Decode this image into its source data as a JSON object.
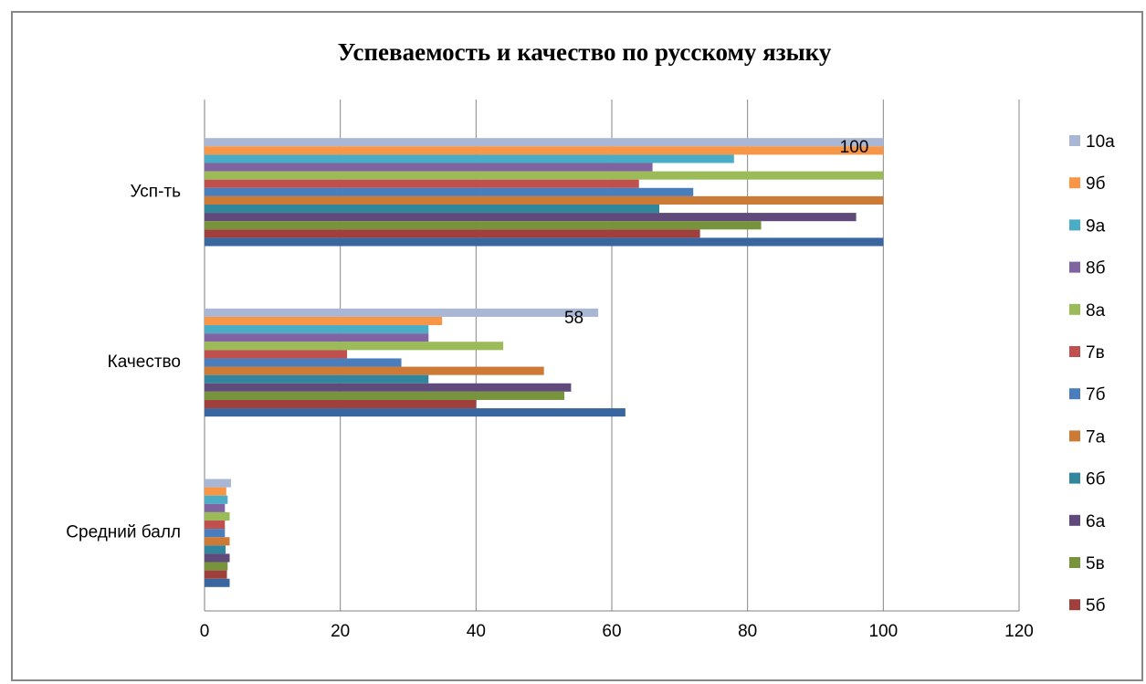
{
  "chart_data": {
    "type": "bar",
    "orientation": "horizontal",
    "title": "Успеваемость и качество по русскому языку",
    "categories": [
      "Усп-ть",
      "Качество",
      "Средний балл"
    ],
    "xlim": [
      0,
      120
    ],
    "x_ticks": [
      "0",
      "20",
      "40",
      "60",
      "80",
      "100",
      "120"
    ],
    "grid": true,
    "legend_position": "right",
    "series": [
      {
        "name": "5б",
        "color": "#a0403c",
        "values": [
          73,
          40,
          3.3
        ]
      },
      {
        "name": "5в",
        "color": "#77933c",
        "values": [
          82,
          53,
          3.4
        ]
      },
      {
        "name": "6а",
        "color": "#5f4a7b",
        "values": [
          96,
          54,
          3.7
        ]
      },
      {
        "name": "6б",
        "color": "#31859c",
        "values": [
          67,
          33,
          3.1
        ]
      },
      {
        "name": "7а",
        "color": "#cc7a36",
        "values": [
          100,
          50,
          3.7
        ]
      },
      {
        "name": "7б",
        "color": "#4a7dbb",
        "values": [
          72,
          29,
          3.0
        ]
      },
      {
        "name": "7в",
        "color": "#c0504d",
        "values": [
          64,
          21,
          3.0
        ]
      },
      {
        "name": "8а",
        "color": "#9bbb59",
        "values": [
          100,
          44,
          3.7
        ]
      },
      {
        "name": "8б",
        "color": "#8064a2",
        "values": [
          66,
          33,
          3.0
        ]
      },
      {
        "name": "9а",
        "color": "#4bacc6",
        "values": [
          78,
          33,
          3.4
        ]
      },
      {
        "name": "9б",
        "color": "#f79646",
        "values": [
          100,
          35,
          3.2
        ]
      },
      {
        "name": "10а",
        "color": "#a9b7d5",
        "values": [
          100,
          58,
          3.9
        ]
      }
    ],
    "base_series": {
      "color": "#3a66a0",
      "values": [
        100,
        62,
        3.7
      ]
    },
    "data_labels": [
      {
        "series": "10а",
        "category": "Усп-ть",
        "text": "100"
      },
      {
        "series": "10а",
        "category": "Качество",
        "text": "58"
      }
    ]
  }
}
